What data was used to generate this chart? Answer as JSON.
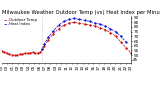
{
  "title": "Milwaukee Weather Outdoor Temp (vs) Heat Index per Minute (Last 24 Hours)",
  "legend_line1": "Outdoor Temp",
  "legend_line2": "Heat Index",
  "plot_background": "#ffffff",
  "fig_background": "#ffffff",
  "ylim": [
    42,
    92
  ],
  "yticks": [
    45,
    50,
    55,
    60,
    65,
    70,
    75,
    80,
    85,
    90
  ],
  "xlim": [
    0,
    1
  ],
  "red_color": "#cc0000",
  "blue_color": "#0000cc",
  "vline_x": 0.315,
  "vline_color": "#aaaaaa",
  "red_data_x": [
    0.0,
    0.02,
    0.04,
    0.06,
    0.08,
    0.1,
    0.12,
    0.14,
    0.16,
    0.18,
    0.2,
    0.22,
    0.24,
    0.26,
    0.28,
    0.3,
    0.315,
    0.33,
    0.36,
    0.4,
    0.44,
    0.48,
    0.52,
    0.56,
    0.6,
    0.64,
    0.68,
    0.72,
    0.76,
    0.8,
    0.84,
    0.88,
    0.92,
    0.96,
    1.0
  ],
  "red_data_y": [
    54,
    53,
    52,
    51,
    50,
    50,
    50,
    51,
    51,
    52,
    52,
    52,
    53,
    52,
    52,
    53,
    56,
    60,
    66,
    73,
    78,
    82,
    84,
    85,
    84,
    83,
    82,
    81,
    79,
    77,
    74,
    70,
    64,
    58,
    52
  ],
  "blue_data_x": [
    0.315,
    0.33,
    0.36,
    0.4,
    0.44,
    0.48,
    0.52,
    0.56,
    0.6,
    0.64,
    0.68,
    0.72,
    0.76,
    0.8,
    0.84,
    0.88,
    0.92,
    0.96
  ],
  "blue_data_y": [
    57,
    62,
    69,
    76,
    82,
    86,
    88,
    89,
    88,
    87,
    86,
    84,
    83,
    81,
    78,
    75,
    70,
    64
  ],
  "title_fontsize": 3.8,
  "tick_fontsize": 3.0,
  "legend_fontsize": 2.8,
  "line_width": 0.5,
  "marker_size": 0.6
}
